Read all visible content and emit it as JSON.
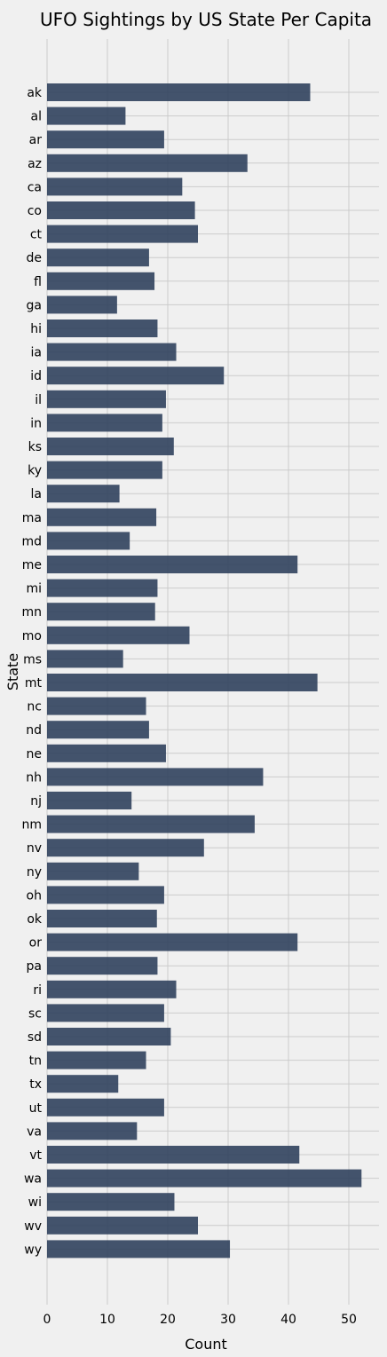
{
  "chart_data": {
    "type": "bar",
    "orientation": "horizontal",
    "title": "UFO Sightings by US State Per Capita",
    "xlabel": "Count",
    "ylabel": "State",
    "xlim": [
      0,
      55
    ],
    "xticks": [
      0,
      10,
      20,
      30,
      40,
      50
    ],
    "grid": true,
    "bar_color": "#30415d",
    "background": "#f0f0f0",
    "categories": [
      "ak",
      "al",
      "ar",
      "az",
      "ca",
      "co",
      "ct",
      "de",
      "fl",
      "ga",
      "hi",
      "ia",
      "id",
      "il",
      "in",
      "ks",
      "ky",
      "la",
      "ma",
      "md",
      "me",
      "mi",
      "mn",
      "mo",
      "ms",
      "mt",
      "nc",
      "nd",
      "ne",
      "nh",
      "nj",
      "nm",
      "nv",
      "ny",
      "oh",
      "ok",
      "or",
      "pa",
      "ri",
      "sc",
      "sd",
      "tn",
      "tx",
      "ut",
      "va",
      "vt",
      "wa",
      "wi",
      "wv",
      "wy"
    ],
    "values": [
      43.6,
      13.0,
      19.4,
      33.2,
      22.4,
      24.5,
      25.0,
      16.9,
      17.8,
      11.6,
      18.3,
      21.4,
      29.3,
      19.7,
      19.1,
      21.0,
      19.1,
      12.0,
      18.1,
      13.7,
      41.5,
      18.3,
      17.9,
      23.6,
      12.6,
      44.8,
      16.4,
      16.9,
      19.7,
      35.8,
      14.0,
      34.4,
      26.0,
      15.2,
      19.4,
      18.2,
      41.5,
      18.3,
      21.4,
      19.4,
      20.5,
      16.4,
      11.8,
      19.4,
      14.9,
      41.8,
      52.1,
      21.1,
      25.0,
      30.3
    ]
  }
}
